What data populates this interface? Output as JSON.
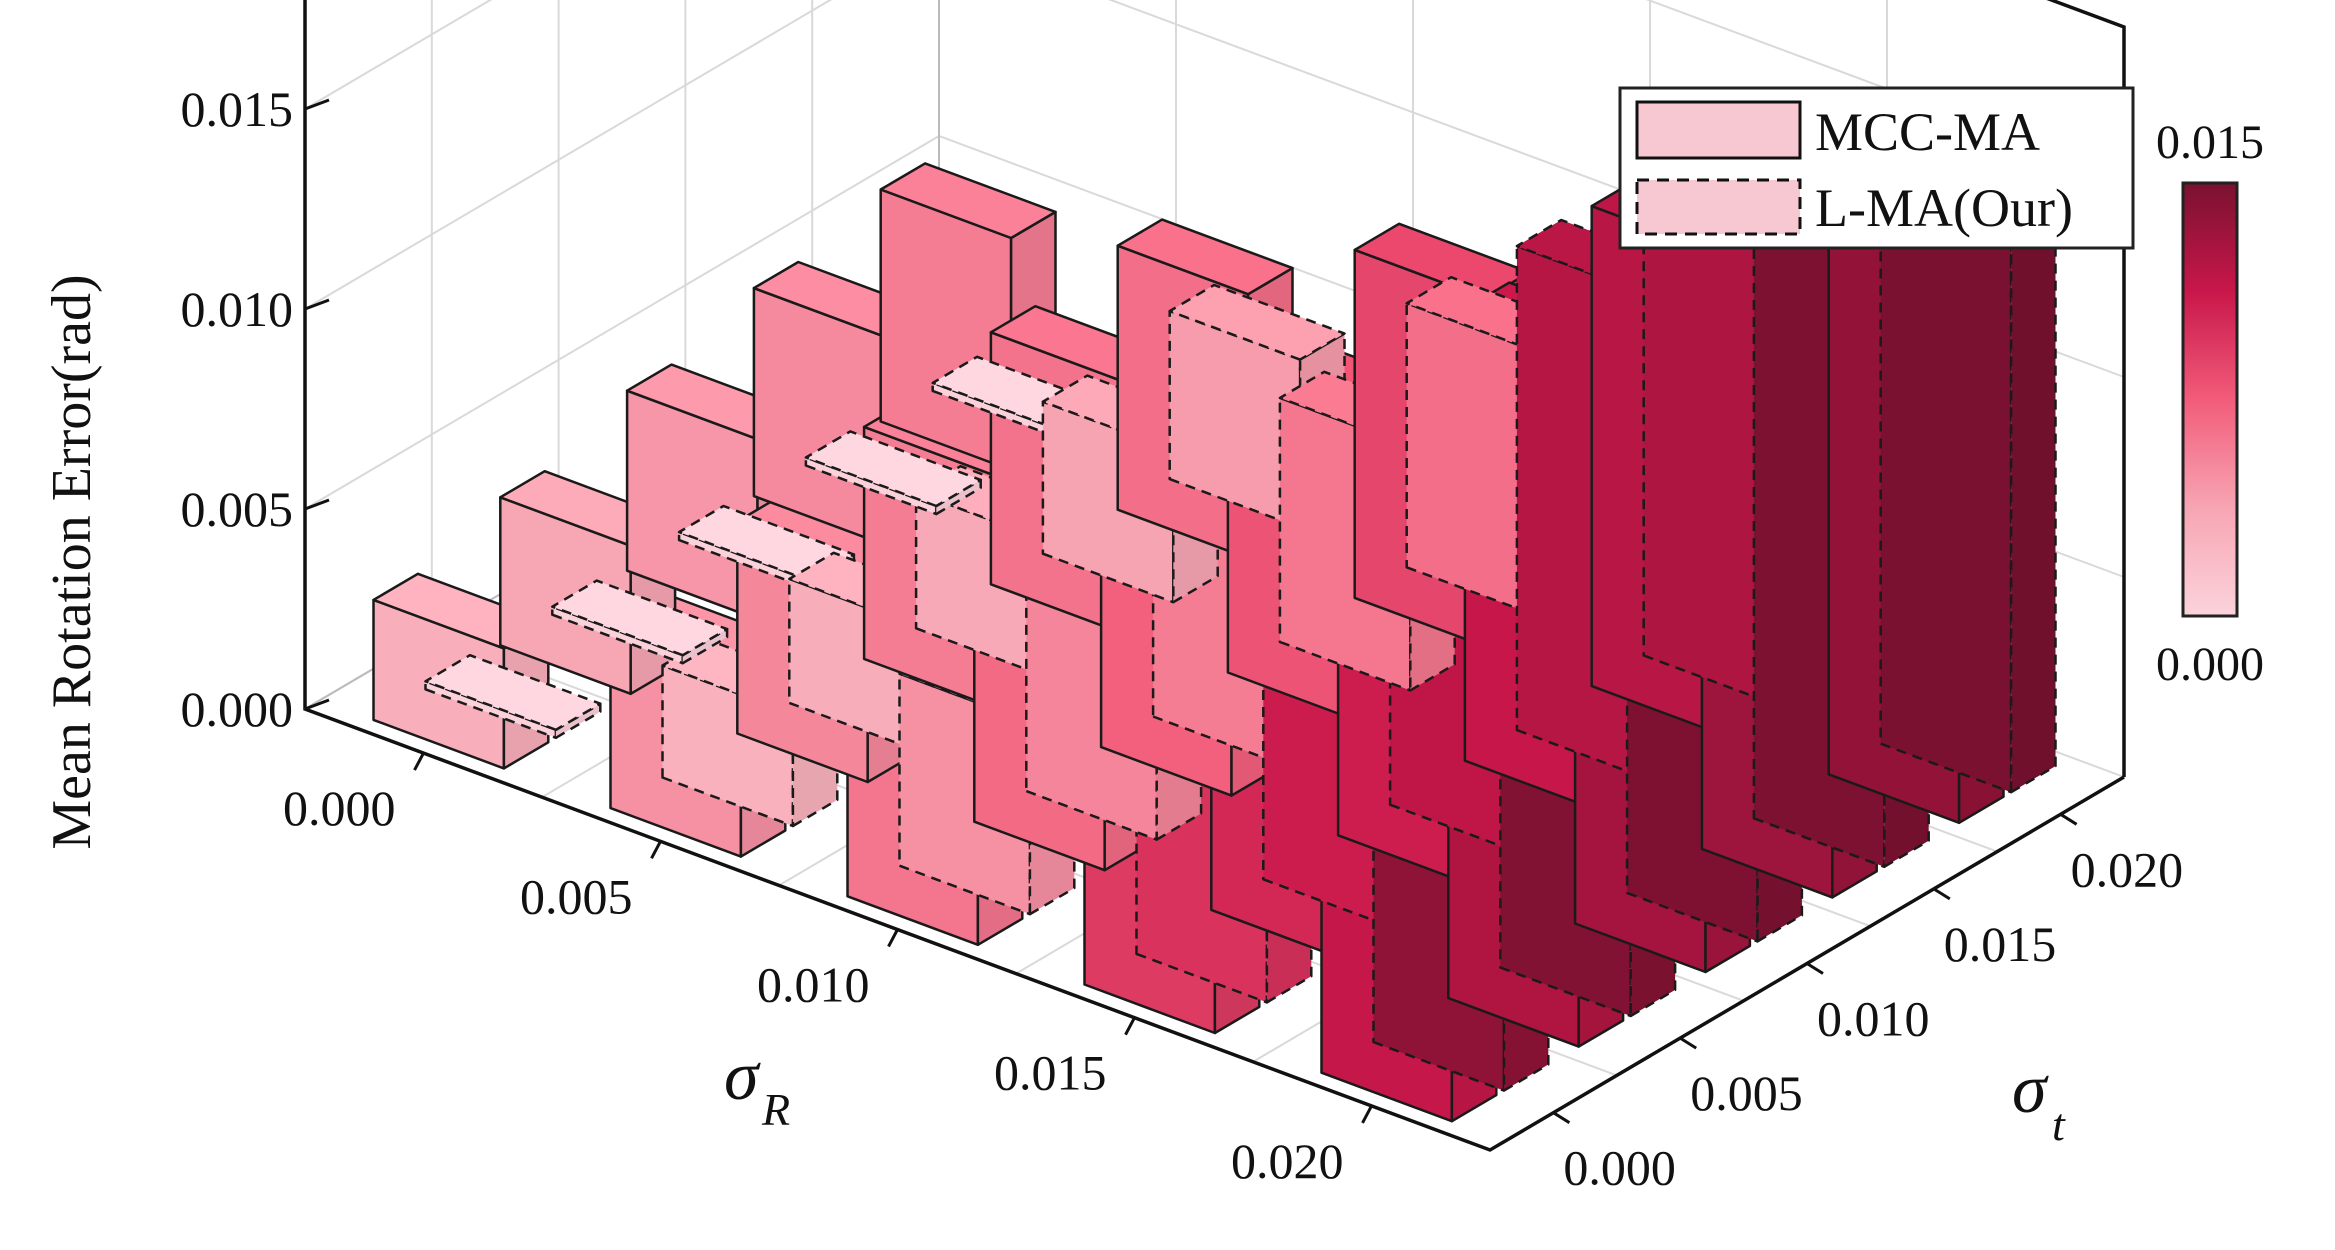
{
  "chart_data": {
    "type": "bar3d",
    "zlabel": "Mean Rotation Error(rad)",
    "xlabel_symbol": "σ",
    "xlabel_sub": "R",
    "ylabel_symbol": "σ",
    "ylabel_sub": "t",
    "x_ticks": [
      "0.000",
      "0.005",
      "0.010",
      "0.015",
      "0.020"
    ],
    "y_ticks": [
      "0.000",
      "0.005",
      "0.010",
      "0.015",
      "0.020"
    ],
    "z_ticks": [
      "0.000",
      "0.005",
      "0.010",
      "0.015"
    ],
    "zlim": [
      0,
      0.015
    ],
    "legend_position": "top-right",
    "colorbar": {
      "max_label": "0.015",
      "min_label": "0.000",
      "min": 0,
      "max": 0.015
    },
    "sigma_R": [
      0.0,
      0.005,
      0.01,
      0.015,
      0.02
    ],
    "sigma_t": [
      0.0,
      0.005,
      0.01,
      0.015,
      0.02
    ],
    "series": [
      {
        "name": "MCC-MA",
        "style": "solid",
        "values": [
          [
            0.003,
            0.0037,
            0.0045,
            0.0052,
            0.0058
          ],
          [
            0.0048,
            0.0053,
            0.0058,
            0.0063,
            0.0066
          ],
          [
            0.0062,
            0.0068,
            0.0073,
            0.008,
            0.0087
          ],
          [
            0.0093,
            0.0103,
            0.0109,
            0.0113,
            0.012
          ],
          [
            0.0114,
            0.0124,
            0.013,
            0.0133,
            0.0138
          ]
        ]
      },
      {
        "name": "L-MA(Our)",
        "style": "dashed",
        "values": [
          [
            0.0002,
            0.0002,
            0.0002,
            0.0002,
            0.0002
          ],
          [
            0.0028,
            0.0031,
            0.0034,
            0.0038,
            0.0042
          ],
          [
            0.0048,
            0.0054,
            0.0058,
            0.0061,
            0.0066
          ],
          [
            0.0098,
            0.011,
            0.0117,
            0.0121,
            0.0125
          ],
          [
            0.014,
            0.0146,
            0.0148,
            0.0149,
            0.015
          ]
        ]
      }
    ]
  }
}
